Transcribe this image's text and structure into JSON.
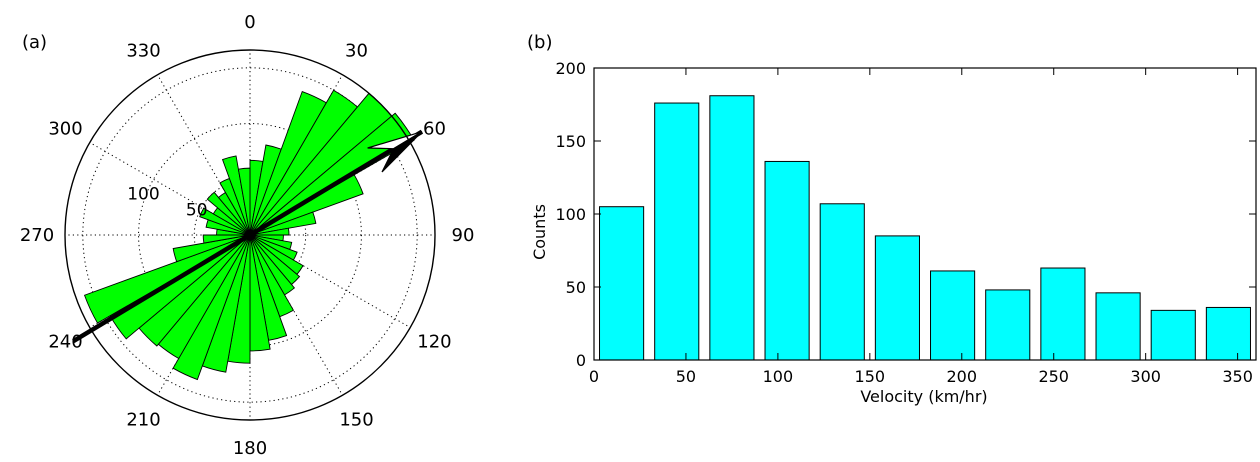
{
  "panels": {
    "a_label": "(a)",
    "b_label": "(b)"
  },
  "colors": {
    "rose_fill": "#00ff00",
    "hist_fill": "#00ffff",
    "stroke": "#000000",
    "grid": "#000000"
  },
  "chart_data": [
    {
      "type": "polar-rose",
      "angle_tick_labels": [
        "0",
        "30",
        "60",
        "90",
        "120",
        "150",
        "180",
        "210",
        "240",
        "270",
        "300",
        "330"
      ],
      "radial_tick_labels": [
        "50",
        "100"
      ],
      "radial_ticks": [
        50,
        100,
        150
      ],
      "rmax": 166,
      "bin_width_deg": 10,
      "bins": [
        {
          "center": 5,
          "value": 67
        },
        {
          "center": 15,
          "value": 82
        },
        {
          "center": 25,
          "value": 137
        },
        {
          "center": 35,
          "value": 150
        },
        {
          "center": 45,
          "value": 166
        },
        {
          "center": 55,
          "value": 170
        },
        {
          "center": 65,
          "value": 108
        },
        {
          "center": 75,
          "value": 60
        },
        {
          "center": 85,
          "value": 35
        },
        {
          "center": 95,
          "value": 30
        },
        {
          "center": 105,
          "value": 38
        },
        {
          "center": 115,
          "value": 45
        },
        {
          "center": 125,
          "value": 55
        },
        {
          "center": 135,
          "value": 58
        },
        {
          "center": 145,
          "value": 62
        },
        {
          "center": 155,
          "value": 78
        },
        {
          "center": 165,
          "value": 96
        },
        {
          "center": 175,
          "value": 104
        },
        {
          "center": 185,
          "value": 115
        },
        {
          "center": 195,
          "value": 125
        },
        {
          "center": 205,
          "value": 138
        },
        {
          "center": 215,
          "value": 128
        },
        {
          "center": 225,
          "value": 130
        },
        {
          "center": 235,
          "value": 145
        },
        {
          "center": 245,
          "value": 158
        },
        {
          "center": 255,
          "value": 70
        },
        {
          "center": 265,
          "value": 42
        },
        {
          "center": 275,
          "value": 30
        },
        {
          "center": 285,
          "value": 40
        },
        {
          "center": 295,
          "value": 48
        },
        {
          "center": 305,
          "value": 38
        },
        {
          "center": 315,
          "value": 50
        },
        {
          "center": 325,
          "value": 44
        },
        {
          "center": 335,
          "value": 54
        },
        {
          "center": 345,
          "value": 72
        },
        {
          "center": 355,
          "value": 60
        }
      ],
      "mean_direction": {
        "angle": 59,
        "length": 180,
        "opposite_angle": 239,
        "opposite_length": 185
      }
    },
    {
      "type": "bar",
      "xlabel": "Velocity (km/hr)",
      "ylabel": "Counts",
      "xlim": [
        0,
        360
      ],
      "ylim": [
        0,
        200
      ],
      "xticks": [
        0,
        50,
        100,
        150,
        200,
        250,
        300,
        350
      ],
      "yticks": [
        0,
        50,
        100,
        150,
        200
      ],
      "bar_width": 24,
      "bin_centers": [
        15,
        45,
        75,
        105,
        135,
        165,
        195,
        225,
        255,
        285,
        315,
        345
      ],
      "values": [
        105,
        176,
        181,
        136,
        107,
        85,
        61,
        48,
        63,
        46,
        34,
        36
      ]
    }
  ]
}
